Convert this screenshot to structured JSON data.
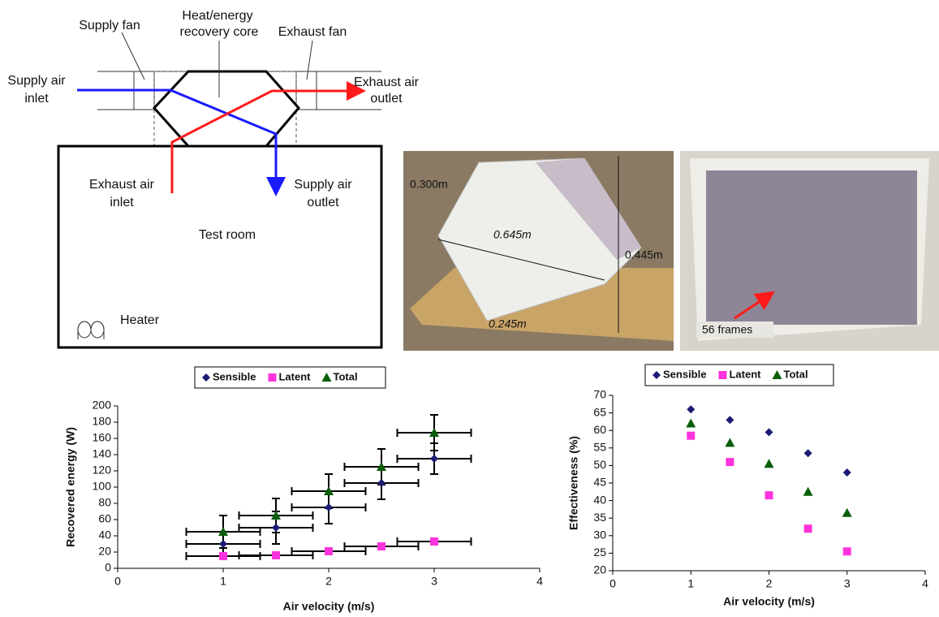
{
  "diagram": {
    "supply_fan": "Supply fan",
    "core": [
      "Heat/energy",
      "recovery core"
    ],
    "exhaust_fan": "Exhaust fan",
    "supply_air_inlet": [
      "Supply air",
      "inlet"
    ],
    "exhaust_air_outlet": [
      "Exhaust air",
      "outlet"
    ],
    "exhaust_air_inlet": [
      "Exhaust air",
      "inlet"
    ],
    "supply_air_outlet": [
      "Supply air",
      "outlet"
    ],
    "test_room": "Test room",
    "heater": "Heater"
  },
  "photos": {
    "depth": "0.300m",
    "diagonal": "0.645m",
    "height": "0.445m",
    "side": "0.245m",
    "frames": "56 frames"
  },
  "chart_data": [
    {
      "type": "scatter",
      "x_label": "Air velocity (m/s)",
      "y_label": "Recovered energy (W)",
      "x": [
        1,
        1.5,
        2,
        2.5,
        3
      ],
      "xlim": [
        0,
        4
      ],
      "xticks": [
        0,
        1,
        2,
        3,
        4
      ],
      "ylim": [
        0,
        200
      ],
      "yticks": [
        0,
        20,
        40,
        60,
        80,
        100,
        120,
        140,
        160,
        180,
        200
      ],
      "legend": "top",
      "series": [
        {
          "name": "Sensible",
          "color": "#1c1c74",
          "marker": "diamond",
          "values": [
            30,
            50,
            75,
            105,
            135
          ],
          "y_errors": [
            15,
            20,
            20,
            20,
            19
          ],
          "x_errors": [
            0.35,
            0.35,
            0.35,
            0.35,
            0.35
          ]
        },
        {
          "name": "Latent",
          "color": "#ff33dd",
          "marker": "square",
          "values": [
            15,
            16,
            21,
            27,
            33
          ],
          "x_errors": [
            0.35,
            0.35,
            0.35,
            0.35,
            0.35
          ]
        },
        {
          "name": "Total",
          "color": "#0b5e0b",
          "marker": "triangle",
          "values": [
            45,
            65,
            95,
            125,
            167
          ],
          "y_errors": [
            20,
            21,
            21,
            22,
            22
          ],
          "x_errors": [
            0.35,
            0.35,
            0.35,
            0.35,
            0.35
          ]
        }
      ]
    },
    {
      "type": "scatter",
      "x_label": "Air velocity (m/s)",
      "y_label": "Effectiveness (%)",
      "x": [
        1,
        1.5,
        2,
        2.5,
        3
      ],
      "xlim": [
        0,
        4
      ],
      "xticks": [
        0,
        1,
        2,
        3,
        4
      ],
      "ylim": [
        20,
        70
      ],
      "yticks": [
        20,
        25,
        30,
        35,
        40,
        45,
        50,
        55,
        60,
        65,
        70
      ],
      "legend": "top",
      "series": [
        {
          "name": "Sensible",
          "color": "#1c1c74",
          "marker": "diamond",
          "values": [
            66,
            63,
            59.5,
            53.5,
            48
          ]
        },
        {
          "name": "Latent",
          "color": "#ff33dd",
          "marker": "square",
          "values": [
            58.5,
            51,
            41.5,
            32,
            25.5
          ]
        },
        {
          "name": "Total",
          "color": "#0b5e0b",
          "marker": "triangle",
          "values": [
            62,
            56.5,
            50.5,
            42.5,
            36.5
          ]
        }
      ]
    }
  ]
}
